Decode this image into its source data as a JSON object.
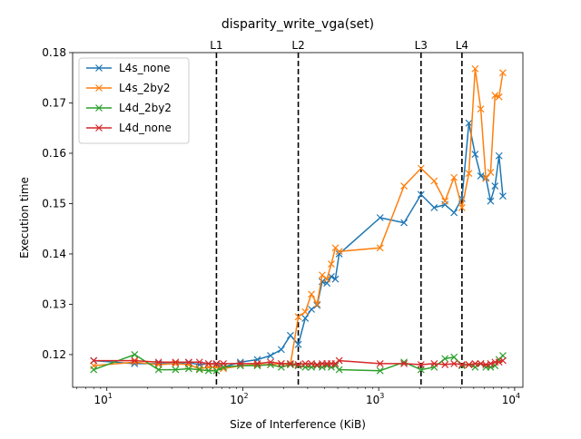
{
  "chart_data": {
    "type": "line",
    "title": "disparity_write_vga(set)",
    "xlabel": "Size of Interference (KiB)",
    "ylabel": "Execution time",
    "xscale": "log",
    "xlim": [
      5.6,
      11500
    ],
    "ylim": [
      0.1135,
      0.18
    ],
    "grid": false,
    "legend_position": "top-left",
    "x_ticks": [
      {
        "value": 10,
        "base": "10",
        "exp": "1"
      },
      {
        "value": 100,
        "base": "10",
        "exp": "2"
      },
      {
        "value": 1000,
        "base": "10",
        "exp": "3"
      },
      {
        "value": 10000,
        "base": "10",
        "exp": "4"
      }
    ],
    "y_ticks": [
      0.12,
      0.13,
      0.14,
      0.15,
      0.16,
      0.17,
      0.18
    ],
    "y_tick_labels": [
      "0.12",
      "0.13",
      "0.14",
      "0.15",
      "0.16",
      "0.17",
      "0.18"
    ],
    "cache_lines": [
      {
        "label": "L1",
        "x": 64
      },
      {
        "label": "L2",
        "x": 256
      },
      {
        "label": "L3",
        "x": 2048
      },
      {
        "label": "L4",
        "x": 4096
      }
    ],
    "series": [
      {
        "name": "L4s_none",
        "color": "#1f77b4",
        "points": [
          [
            8,
            0.1188
          ],
          [
            16,
            0.1182
          ],
          [
            24,
            0.1182
          ],
          [
            32,
            0.1182
          ],
          [
            40,
            0.1184
          ],
          [
            48,
            0.118
          ],
          [
            56,
            0.1182
          ],
          [
            64,
            0.118
          ],
          [
            72,
            0.1175
          ],
          [
            96,
            0.1185
          ],
          [
            128,
            0.119
          ],
          [
            160,
            0.1198
          ],
          [
            192,
            0.121
          ],
          [
            224,
            0.1238
          ],
          [
            256,
            0.122
          ],
          [
            288,
            0.1272
          ],
          [
            320,
            0.129
          ],
          [
            352,
            0.1298
          ],
          [
            384,
            0.1345
          ],
          [
            416,
            0.1342
          ],
          [
            448,
            0.1355
          ],
          [
            480,
            0.135
          ],
          [
            512,
            0.14
          ],
          [
            1024,
            0.1472
          ],
          [
            1536,
            0.1462
          ],
          [
            2048,
            0.1518
          ],
          [
            2560,
            0.1492
          ],
          [
            3072,
            0.1498
          ],
          [
            3584,
            0.1482
          ],
          [
            4096,
            0.151
          ],
          [
            4608,
            0.166
          ],
          [
            5120,
            0.1598
          ],
          [
            5632,
            0.1555
          ],
          [
            6144,
            0.1552
          ],
          [
            6656,
            0.1505
          ],
          [
            7168,
            0.1535
          ],
          [
            7680,
            0.1595
          ],
          [
            8192,
            0.1515
          ]
        ]
      },
      {
        "name": "L4s_2by2",
        "color": "#ff7f0e",
        "points": [
          [
            8,
            0.1178
          ],
          [
            16,
            0.1185
          ],
          [
            24,
            0.118
          ],
          [
            32,
            0.1182
          ],
          [
            40,
            0.118
          ],
          [
            48,
            0.1172
          ],
          [
            56,
            0.1175
          ],
          [
            64,
            0.1175
          ],
          [
            72,
            0.1172
          ],
          [
            96,
            0.1178
          ],
          [
            128,
            0.118
          ],
          [
            160,
            0.118
          ],
          [
            192,
            0.1182
          ],
          [
            224,
            0.118
          ],
          [
            256,
            0.1275
          ],
          [
            288,
            0.1285
          ],
          [
            320,
            0.132
          ],
          [
            352,
            0.13
          ],
          [
            384,
            0.1358
          ],
          [
            416,
            0.135
          ],
          [
            448,
            0.138
          ],
          [
            480,
            0.1412
          ],
          [
            512,
            0.1405
          ],
          [
            1024,
            0.1412
          ],
          [
            1536,
            0.1535
          ],
          [
            2048,
            0.157
          ],
          [
            2560,
            0.1545
          ],
          [
            3072,
            0.1505
          ],
          [
            3584,
            0.1552
          ],
          [
            4096,
            0.1492
          ],
          [
            4608,
            0.156
          ],
          [
            5120,
            0.1768
          ],
          [
            5632,
            0.1688
          ],
          [
            6144,
            0.155
          ],
          [
            6656,
            0.1562
          ],
          [
            7168,
            0.1715
          ],
          [
            7680,
            0.1712
          ],
          [
            8192,
            0.176
          ]
        ]
      },
      {
        "name": "L4d_2by2",
        "color": "#2ca02c",
        "points": [
          [
            8,
            0.117
          ],
          [
            16,
            0.12
          ],
          [
            24,
            0.117
          ],
          [
            32,
            0.117
          ],
          [
            40,
            0.1172
          ],
          [
            48,
            0.117
          ],
          [
            56,
            0.1168
          ],
          [
            64,
            0.1168
          ],
          [
            72,
            0.1175
          ],
          [
            96,
            0.1178
          ],
          [
            128,
            0.1178
          ],
          [
            160,
            0.118
          ],
          [
            192,
            0.1175
          ],
          [
            224,
            0.118
          ],
          [
            256,
            0.1178
          ],
          [
            288,
            0.1175
          ],
          [
            320,
            0.1175
          ],
          [
            352,
            0.1178
          ],
          [
            384,
            0.1175
          ],
          [
            416,
            0.1178
          ],
          [
            448,
            0.1175
          ],
          [
            480,
            0.1178
          ],
          [
            512,
            0.117
          ],
          [
            1024,
            0.1168
          ],
          [
            1536,
            0.1185
          ],
          [
            2048,
            0.117
          ],
          [
            2560,
            0.1175
          ],
          [
            3072,
            0.1192
          ],
          [
            3584,
            0.1195
          ],
          [
            4096,
            0.1178
          ],
          [
            4608,
            0.118
          ],
          [
            5120,
            0.1175
          ],
          [
            5632,
            0.1182
          ],
          [
            6144,
            0.1175
          ],
          [
            6656,
            0.1175
          ],
          [
            7168,
            0.1178
          ],
          [
            7680,
            0.119
          ],
          [
            8192,
            0.1198
          ]
        ]
      },
      {
        "name": "L4d_none",
        "color": "#d62728",
        "points": [
          [
            8,
            0.1188
          ],
          [
            16,
            0.1188
          ],
          [
            24,
            0.1185
          ],
          [
            32,
            0.1185
          ],
          [
            40,
            0.1185
          ],
          [
            48,
            0.1185
          ],
          [
            56,
            0.1182
          ],
          [
            64,
            0.1182
          ],
          [
            72,
            0.1182
          ],
          [
            96,
            0.1182
          ],
          [
            128,
            0.1182
          ],
          [
            160,
            0.1185
          ],
          [
            192,
            0.1182
          ],
          [
            224,
            0.1182
          ],
          [
            256,
            0.118
          ],
          [
            288,
            0.1182
          ],
          [
            320,
            0.1182
          ],
          [
            352,
            0.118
          ],
          [
            384,
            0.1182
          ],
          [
            416,
            0.1182
          ],
          [
            448,
            0.1182
          ],
          [
            480,
            0.1182
          ],
          [
            512,
            0.1188
          ],
          [
            1024,
            0.1182
          ],
          [
            1536,
            0.1182
          ],
          [
            2048,
            0.118
          ],
          [
            2560,
            0.1182
          ],
          [
            3072,
            0.118
          ],
          [
            3584,
            0.1182
          ],
          [
            4096,
            0.118
          ],
          [
            4608,
            0.118
          ],
          [
            5120,
            0.1182
          ],
          [
            5632,
            0.1182
          ],
          [
            6144,
            0.118
          ],
          [
            6656,
            0.1182
          ],
          [
            7168,
            0.1185
          ],
          [
            7680,
            0.1185
          ],
          [
            8192,
            0.1188
          ]
        ]
      }
    ]
  }
}
